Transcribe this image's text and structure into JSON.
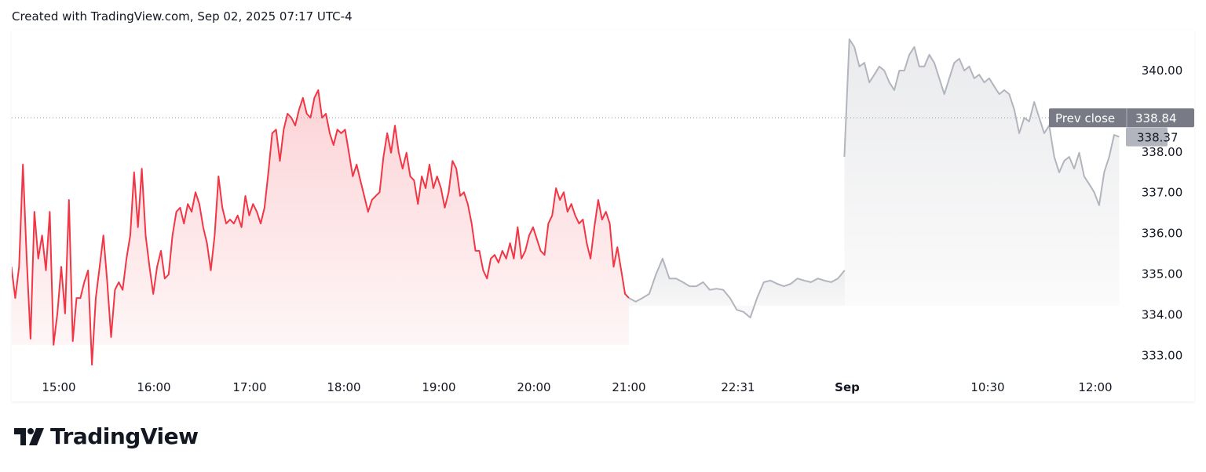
{
  "header": {
    "text": "Created with TradingView.com, Sep 02, 2025 07:17 UTC-4"
  },
  "logo": {
    "text": "TradingView"
  },
  "colors": {
    "regular_session": "#f23645",
    "extended_session": "#b2b5be",
    "prev_close_badge": "#787b86",
    "last_price_badge": "#b2b5be"
  },
  "chart_data": {
    "type": "area",
    "xlabel": "",
    "ylabel": "",
    "ylim": [
      332.6,
      340.9
    ],
    "grid": false,
    "y_axis_position": "right",
    "y_ticks": [
      "340.00",
      "338.00",
      "337.00",
      "336.00",
      "335.00",
      "334.00",
      "333.00"
    ],
    "x_ticks": [
      "15:00",
      "16:00",
      "17:00",
      "18:00",
      "19:00",
      "20:00",
      "21:00",
      "22:31",
      "Sep",
      "10:30",
      "12:00"
    ],
    "prev_close": {
      "label": "Prev close",
      "value": "338.84"
    },
    "last_price": "338.37",
    "series": [
      {
        "session": "regular",
        "start": "14:30",
        "end": "21:00",
        "prices": [
          335.18,
          334.41,
          335.18,
          337.69,
          335.38,
          333.41,
          336.53,
          335.38,
          335.95,
          335.09,
          336.53,
          333.26,
          334.03,
          335.18,
          334.03,
          336.82,
          333.35,
          334.41,
          334.41,
          334.8,
          335.09,
          332.77,
          334.41,
          335.18,
          335.95,
          334.8,
          333.45,
          334.61,
          334.8,
          334.61,
          335.38,
          335.95,
          337.5,
          336.15,
          337.59,
          335.95,
          335.18,
          334.51,
          335.18,
          335.57,
          334.89,
          334.99,
          335.95,
          336.53,
          336.63,
          336.24,
          336.72,
          336.53,
          337.01,
          336.72,
          336.15,
          335.76,
          335.09,
          335.95,
          337.4,
          336.63,
          336.24,
          336.34,
          336.24,
          336.44,
          336.15,
          336.92,
          336.44,
          336.72,
          336.53,
          336.24,
          336.63,
          337.5,
          338.46,
          338.55,
          337.78,
          338.55,
          338.94,
          338.84,
          338.65,
          339.04,
          339.33,
          338.94,
          338.84,
          339.33,
          339.52,
          338.84,
          338.94,
          338.46,
          338.17,
          338.55,
          338.46,
          338.55,
          337.98,
          337.4,
          337.69,
          337.3,
          336.92,
          336.53,
          336.82,
          336.92,
          337.01,
          337.88,
          338.46,
          337.98,
          338.65,
          337.98,
          337.59,
          337.98,
          337.4,
          337.3,
          336.72,
          337.4,
          337.11,
          337.69,
          337.11,
          337.4,
          337.11,
          336.63,
          337.01,
          337.78,
          337.59,
          336.92,
          337.01,
          336.72,
          336.24,
          335.57,
          335.57,
          335.09,
          334.89,
          335.38,
          335.47,
          335.28,
          335.57,
          335.38,
          335.76,
          335.38,
          336.15,
          335.38,
          335.57,
          335.95,
          336.15,
          335.86,
          335.57,
          335.47,
          336.24,
          336.44,
          337.11,
          336.82,
          337.01,
          336.53,
          336.72,
          336.44,
          336.24,
          336.34,
          335.76,
          335.38,
          336.15,
          336.82,
          336.34,
          336.53,
          336.24,
          335.18,
          335.66,
          335.09,
          334.51,
          334.41
        ]
      },
      {
        "session": "post-market",
        "start": "21:00",
        "end": "24:00",
        "prices": [
          334.41,
          334.32,
          334.41,
          334.51,
          334.99,
          335.38,
          334.89,
          334.89,
          334.8,
          334.7,
          334.7,
          334.8,
          334.61,
          334.64,
          334.61,
          334.41,
          334.12,
          334.07,
          333.93,
          334.41,
          334.8,
          334.84,
          334.76,
          334.7,
          334.76,
          334.89,
          334.84,
          334.8,
          334.89,
          334.84,
          334.8,
          334.89,
          335.09
        ]
      },
      {
        "session": "pre-market",
        "start": "08:30",
        "end": "12:20",
        "prices": [
          337.88,
          340.77,
          340.58,
          340.1,
          340.19,
          339.71,
          339.9,
          340.1,
          340.0,
          339.71,
          339.52,
          340.0,
          340.0,
          340.39,
          340.58,
          340.1,
          340.1,
          340.39,
          340.19,
          339.81,
          339.42,
          339.81,
          340.19,
          340.29,
          340.0,
          340.1,
          339.81,
          339.9,
          339.71,
          339.81,
          339.61,
          339.42,
          339.52,
          339.42,
          339.04,
          338.46,
          338.84,
          338.75,
          339.23,
          338.84,
          338.46,
          338.65,
          337.88,
          337.5,
          337.78,
          337.88,
          337.59,
          337.98,
          337.4,
          337.21,
          337.01,
          336.69,
          337.5,
          337.88,
          338.42,
          338.37
        ]
      }
    ]
  }
}
